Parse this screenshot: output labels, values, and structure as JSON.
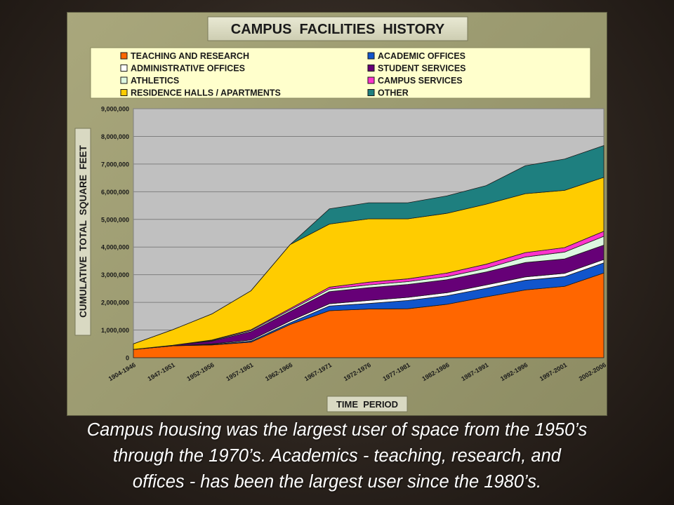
{
  "caption": {
    "lines": [
      "Campus housing was the largest user of space from the 1950’s",
      "through the 1970’s.  Academics - teaching, research, and",
      "offices - has been the largest user since the 1980’s."
    ]
  },
  "chart_data": {
    "type": "area",
    "stacked": true,
    "title": "CAMPUS  FACILITIES  HISTORY",
    "xlabel": "TIME  PERIOD",
    "ylabel": "CUMULATIVE  TOTAL  SQUARE  FEET",
    "ylim": [
      0,
      9000000
    ],
    "yticks": [
      0,
      1000000,
      2000000,
      3000000,
      4000000,
      5000000,
      6000000,
      7000000,
      8000000,
      9000000
    ],
    "ytick_labels": [
      "0",
      "1,000,000",
      "2,000,000",
      "3,000,000",
      "4,000,000",
      "5,000,000",
      "6,000,000",
      "7,000,000",
      "8,000,000",
      "9,000,000"
    ],
    "grid": true,
    "legend_placement": "top",
    "categories": [
      "1904-1946",
      "1947-1951",
      "1952-1956",
      "1957-1961",
      "1962-1966",
      "1967-1971",
      "1972-1976",
      "1977-1981",
      "1982-1986",
      "1987-1991",
      "1992-1996",
      "1997-2001",
      "2002-2006"
    ],
    "series": [
      {
        "name": "TEACHING AND RESEARCH",
        "color": "#ff6600",
        "values": [
          300000,
          430000,
          460000,
          560000,
          1200000,
          1700000,
          1760000,
          1770000,
          1930000,
          2200000,
          2450000,
          2580000,
          3060000
        ]
      },
      {
        "name": "ACADEMIC OFFICES",
        "color": "#1155cc",
        "values": [
          0,
          0,
          20000,
          40000,
          60000,
          170000,
          200000,
          300000,
          310000,
          310000,
          350000,
          350000,
          370000
        ]
      },
      {
        "name": "ADMINISTRATIVE OFFICES",
        "color": "#ffffff",
        "values": [
          0,
          0,
          20000,
          40000,
          70000,
          80000,
          110000,
          110000,
          110000,
          120000,
          120000,
          120000,
          120000
        ]
      },
      {
        "name": "STUDENT SERVICES",
        "color": "#660077",
        "values": [
          0,
          20000,
          100000,
          300000,
          340000,
          440000,
          460000,
          470000,
          470000,
          470000,
          520000,
          520000,
          520000
        ]
      },
      {
        "name": "ATHLETICS",
        "color": "#ddf7e0",
        "values": [
          0,
          0,
          20000,
          40000,
          60000,
          90000,
          100000,
          100000,
          110000,
          130000,
          200000,
          250000,
          320000
        ]
      },
      {
        "name": "CAMPUS SERVICES",
        "color": "#ff33cc",
        "values": [
          0,
          0,
          20000,
          30000,
          50000,
          70000,
          100000,
          100000,
          130000,
          150000,
          160000,
          160000,
          180000
        ]
      },
      {
        "name": "RESIDENCE HALLS / APARTMENTS",
        "color": "#ffcc00",
        "values": [
          200000,
          560000,
          940000,
          1410000,
          2310000,
          2280000,
          2290000,
          2170000,
          2160000,
          2170000,
          2130000,
          2070000,
          1950000
        ]
      },
      {
        "name": "OTHER",
        "color": "#1e7f7f",
        "values": [
          0,
          0,
          0,
          0,
          0,
          550000,
          580000,
          580000,
          630000,
          670000,
          1010000,
          1130000,
          1150000
        ]
      }
    ],
    "legend_order": [
      "TEACHING AND RESEARCH",
      "ACADEMIC OFFICES",
      "ADMINISTRATIVE OFFICES",
      "STUDENT SERVICES",
      "ATHLETICS",
      "CAMPUS SERVICES",
      "RESIDENCE HALLS / APARTMENTS",
      "OTHER"
    ]
  }
}
